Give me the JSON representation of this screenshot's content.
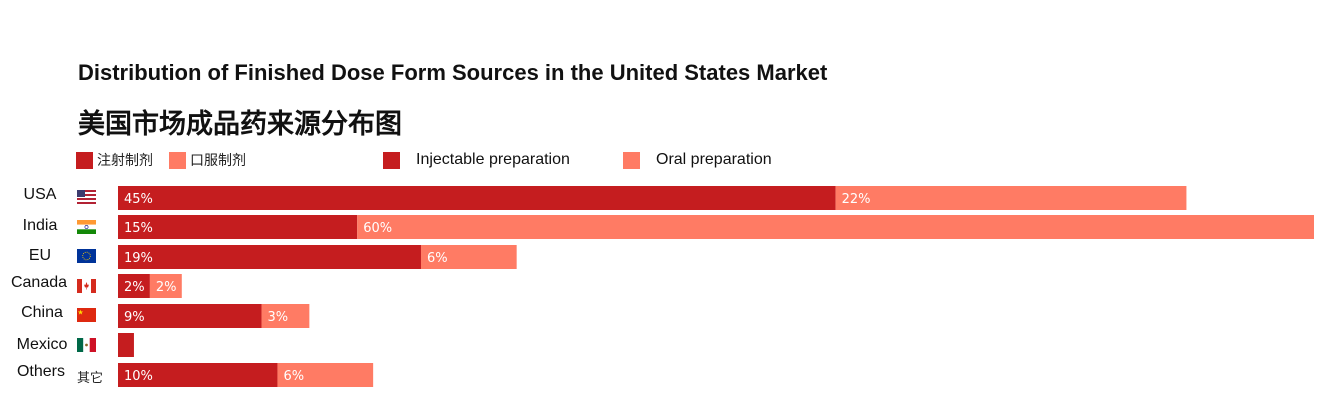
{
  "chart_data": {
    "type": "bar",
    "orientation": "horizontal",
    "stacked": true,
    "title": "Distribution of Finished Dose Form Sources in the United States Market",
    "subtitle": "美国市场成品药来源分布图",
    "categories": [
      "USA",
      "India",
      "EU",
      "Canada",
      "China",
      "Mexico",
      "Others"
    ],
    "series": [
      {
        "name": "Injectable preparation",
        "name_zh": "注射制剂",
        "color": "#c51d1f",
        "values": [
          45,
          15,
          19,
          2,
          9,
          1,
          10
        ],
        "labels": [
          "45%",
          "15%",
          "19%",
          "2%",
          "9%",
          "",
          "10%"
        ]
      },
      {
        "name": "Oral preparation",
        "name_zh": "口服制剂",
        "color": "#ff7b64",
        "values": [
          22,
          60,
          6,
          2,
          3,
          0,
          6
        ],
        "labels": [
          "22%",
          "60%",
          "6%",
          "2%",
          "3%",
          "",
          "6%"
        ]
      }
    ],
    "xlim": [
      0,
      75
    ],
    "grid": false,
    "legend_position": "top"
  },
  "others_zh": "其它",
  "flags": [
    "us-flag-icon",
    "india-flag-icon",
    "eu-flag-icon",
    "canada-flag-icon",
    "china-flag-icon",
    "mexico-flag-icon",
    ""
  ]
}
